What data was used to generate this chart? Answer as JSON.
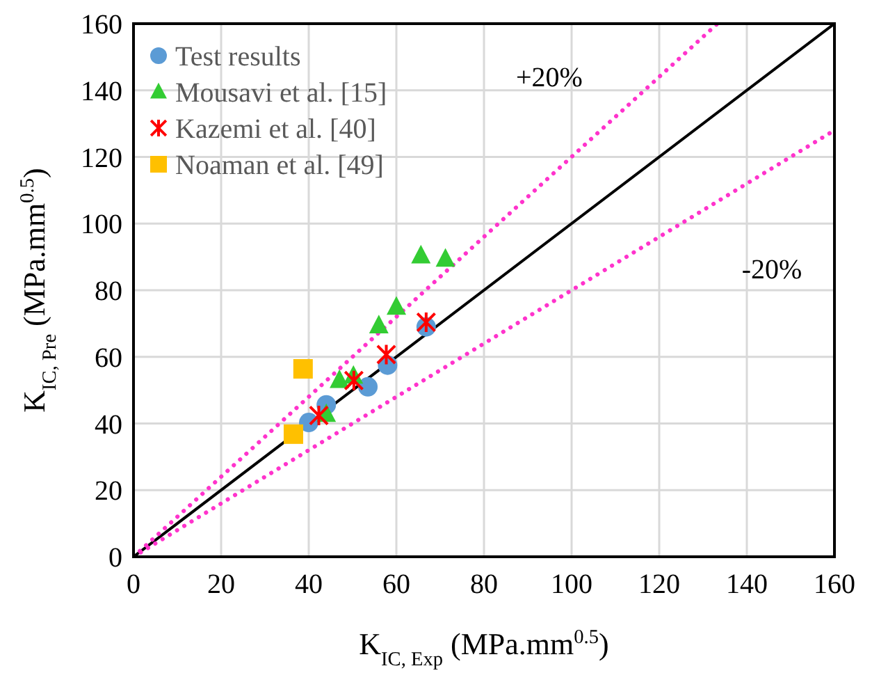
{
  "chart_data": {
    "type": "scatter",
    "xlabel": "K$_{IC, Exp}$ (MPa.mm$^{0.5}$)",
    "ylabel": "K$_{IC, Pre}$ (MPa.mm$^{0.5}$)",
    "xlim": [
      0,
      160
    ],
    "ylim": [
      0,
      160
    ],
    "xticks": [
      0,
      20,
      40,
      60,
      80,
      100,
      120,
      140,
      160
    ],
    "yticks": [
      0,
      20,
      40,
      60,
      80,
      100,
      120,
      140,
      160
    ],
    "grid": true,
    "legend": "top left",
    "series": [
      {
        "type": "line",
        "color": "#000000",
        "line_style": "solid",
        "marker": "none",
        "x": [
          0,
          160
        ],
        "values": [
          0,
          160
        ]
      },
      {
        "type": "line",
        "color": "#ff33cc",
        "line_style": "dotted",
        "marker": "none",
        "x": [
          0,
          133.3
        ],
        "values": [
          0,
          160
        ]
      },
      {
        "type": "line",
        "color": "#ff33cc",
        "line_style": "dotted",
        "marker": "none",
        "x": [
          0,
          160
        ],
        "values": [
          0,
          128
        ]
      },
      {
        "name": "Test results",
        "color": "#5b9bd5",
        "marker": "circle",
        "x": [
          40,
          44,
          53.5,
          58,
          66.8
        ],
        "values": [
          40.3,
          45.6,
          51,
          57.5,
          69
        ]
      },
      {
        "name": "Mousavi et al. [15]",
        "color": "#33cc33",
        "marker": "triangle",
        "x": [
          65.6,
          71.2,
          60,
          56,
          47,
          50.2,
          44
        ],
        "values": [
          90.4,
          89.4,
          75,
          69.4,
          53,
          54.3,
          42.8
        ]
      },
      {
        "name": "Kazemi et al. [40]",
        "color": "#ff0000",
        "marker": "cross",
        "x": [
          42.3,
          50.3,
          57.7,
          66.8
        ],
        "values": [
          42.4,
          52.9,
          60.7,
          70.4
        ]
      },
      {
        "name": "Noaman et al. [49]",
        "color": "#ffc000",
        "marker": "square",
        "x": [
          38.7,
          36.5
        ],
        "values": [
          56.4,
          36.8
        ]
      }
    ],
    "annotations": [
      "+20%",
      "-20%"
    ]
  }
}
